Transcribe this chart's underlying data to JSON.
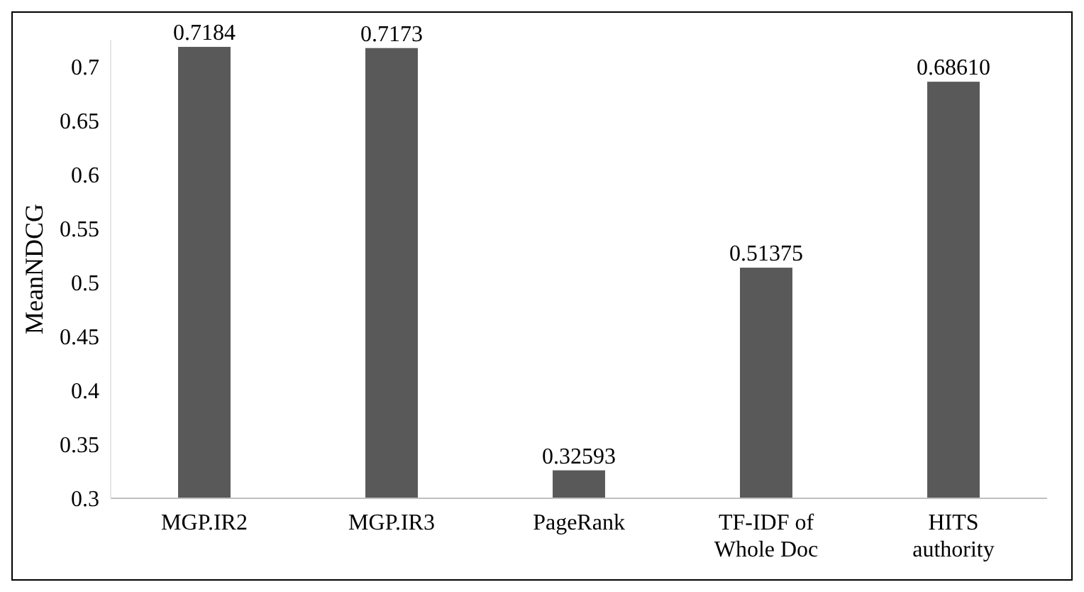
{
  "chart_data": {
    "type": "bar",
    "ylabel": "MeanNDCG",
    "categories": [
      "MGP.IR2",
      "MGP.IR3",
      "PageRank",
      "TF-IDF of Whole Doc",
      "HITS authority"
    ],
    "values": [
      0.7184,
      0.7173,
      0.32593,
      0.51375,
      0.6861
    ],
    "value_labels": [
      "0.7184",
      "0.7173",
      "0.32593",
      "0.51375",
      "0.68610"
    ],
    "color": "#595959",
    "ylim": [
      0.3,
      0.725
    ],
    "yticks": [
      {
        "value": 0.3,
        "label": "0.3"
      },
      {
        "value": 0.35,
        "label": "0.35"
      },
      {
        "value": 0.4,
        "label": "0.4"
      },
      {
        "value": 0.45,
        "label": "0.45"
      },
      {
        "value": 0.5,
        "label": "0.5"
      },
      {
        "value": 0.55,
        "label": "0.55"
      },
      {
        "value": 0.6,
        "label": "0.6"
      },
      {
        "value": 0.65,
        "label": "0.65"
      },
      {
        "value": 0.7,
        "label": "0.7"
      }
    ],
    "grid": false
  }
}
